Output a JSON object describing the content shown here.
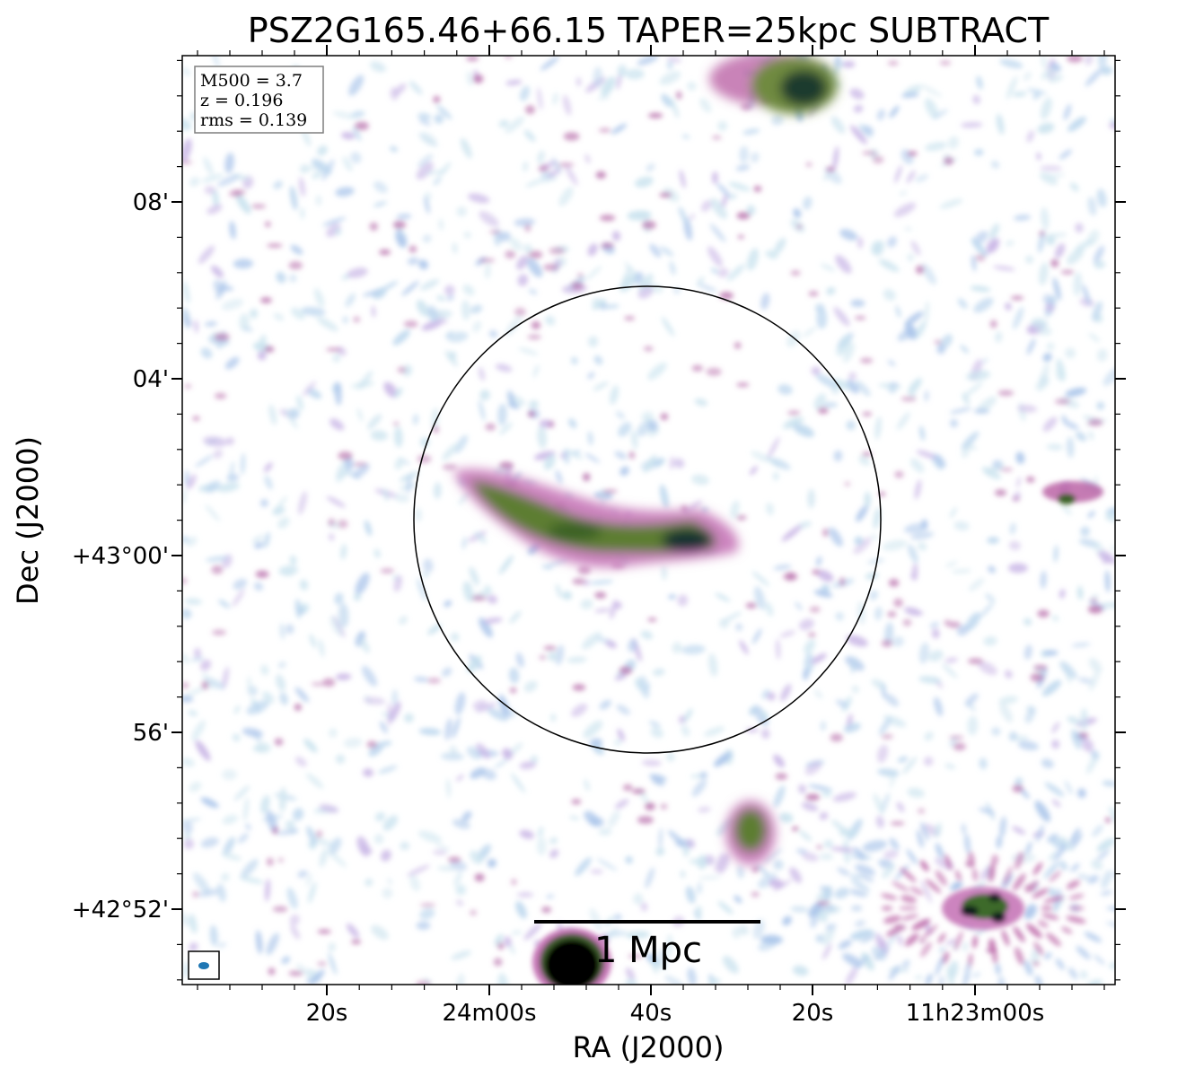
{
  "title": "PSZ2G165.46+66.15 TAPER=25kpc SUBTRACT",
  "xlabel": "RA (J2000)",
  "ylabel": "Dec (J2000)",
  "x_ticks": [
    "20s",
    "24m00s",
    "40s",
    "20s",
    "11h23m00s"
  ],
  "y_ticks": [
    "08'",
    "04'",
    "+43°00'",
    "56'",
    "+42°52'"
  ],
  "info": {
    "m500": "M500 = 3.7",
    "z": "z = 0.196",
    "rms": "rms = 0.139"
  },
  "scale_bar": {
    "label": "1 Mpc"
  },
  "colors": {
    "faint": "#bcd6ee",
    "pink": "#b75aa0",
    "green": "#4f7a2a",
    "dark": "#0d2a2a",
    "beam": "#1f77b4"
  }
}
